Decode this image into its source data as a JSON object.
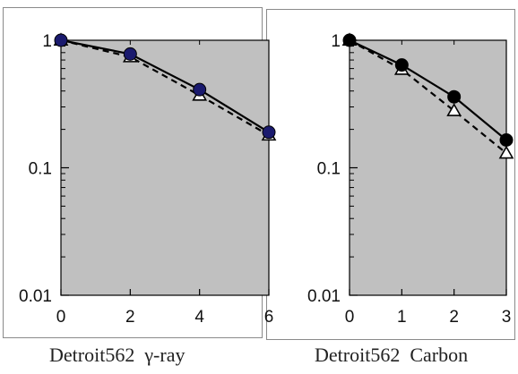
{
  "chart_data": [
    {
      "type": "line",
      "title": "",
      "xlabel": "",
      "ylabel": "",
      "yscale": "log",
      "xlim": [
        0,
        6
      ],
      "ylim": [
        0.01,
        1
      ],
      "x_ticks": [
        0,
        2,
        4,
        6
      ],
      "y_ticks": [
        0.01,
        0.1,
        1
      ],
      "x_tick_labels": [
        "0",
        "2",
        "4",
        "6"
      ],
      "y_tick_labels": [
        "0.01",
        "0.1",
        "1"
      ],
      "plot_background": "#c0c0c0",
      "grid": false,
      "caption": {
        "name": "Detroit562",
        "radiation": "γ-ray"
      },
      "series": [
        {
          "style": "solid",
          "marker": "filled-circle",
          "color": "#1a1a6e",
          "x": [
            0,
            2,
            4,
            6
          ],
          "values": [
            1.0,
            0.78,
            0.41,
            0.19
          ]
        },
        {
          "style": "dashed",
          "marker": "open-triangle",
          "color": "#111111",
          "x": [
            0,
            2,
            4,
            6
          ],
          "values": [
            1.0,
            0.74,
            0.37,
            0.18
          ]
        }
      ]
    },
    {
      "type": "line",
      "title": "",
      "xlabel": "",
      "ylabel": "",
      "yscale": "log",
      "xlim": [
        0,
        3
      ],
      "ylim": [
        0.01,
        1
      ],
      "x_ticks": [
        0,
        1,
        2,
        3
      ],
      "y_ticks": [
        0.01,
        0.1,
        1
      ],
      "x_tick_labels": [
        "0",
        "1",
        "2",
        "3"
      ],
      "y_tick_labels": [
        "0.01",
        "0.1",
        "1"
      ],
      "plot_background": "#c0c0c0",
      "grid": false,
      "caption": {
        "name": "Detroit562",
        "radiation": "Carbon"
      },
      "series": [
        {
          "style": "solid",
          "marker": "filled-circle",
          "color": "#000000",
          "x": [
            0,
            1,
            2,
            3
          ],
          "values": [
            1.0,
            0.64,
            0.36,
            0.165
          ]
        },
        {
          "style": "dashed",
          "marker": "open-triangle",
          "color": "#111111",
          "x": [
            0,
            1,
            2,
            3
          ],
          "values": [
            1.0,
            0.59,
            0.28,
            0.13
          ]
        }
      ]
    }
  ]
}
